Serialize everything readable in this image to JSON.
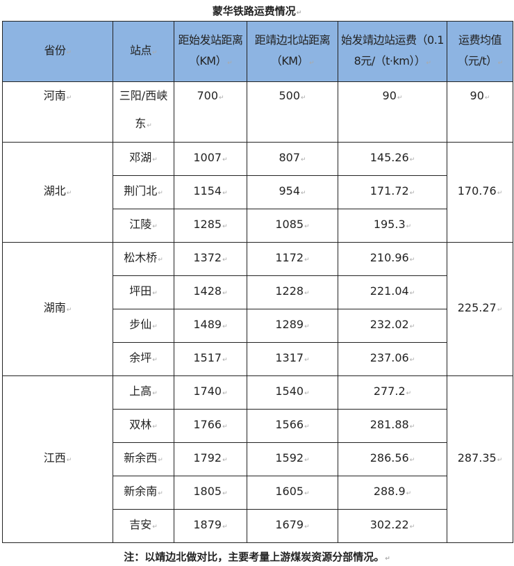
{
  "title": "蒙华铁路运费情况",
  "headers": [
    "省份",
    "站点",
    "距始发站距离（KM）",
    "距靖边北站距离（KM）",
    "始发靖边站运费（0.18元/（t·km））",
    "运费均值（元/t）"
  ],
  "groups": [
    {
      "province": "河南",
      "avg": "90",
      "rows": [
        [
          "三阳/西峡东",
          "700",
          "500",
          "90"
        ]
      ]
    },
    {
      "province": "湖北",
      "avg": "170.76",
      "rows": [
        [
          "邓湖",
          "1007",
          "807",
          "145.26"
        ],
        [
          "荆门北",
          "1154",
          "954",
          "171.72"
        ],
        [
          "江陵",
          "1285",
          "1085",
          "195.3"
        ]
      ]
    },
    {
      "province": "湖南",
      "avg": "225.27",
      "rows": [
        [
          "松木桥",
          "1372",
          "1172",
          "210.96"
        ],
        [
          "坪田",
          "1428",
          "1228",
          "221.04"
        ],
        [
          "步仙",
          "1489",
          "1289",
          "232.02"
        ],
        [
          "余坪",
          "1517",
          "1317",
          "237.06"
        ]
      ]
    },
    {
      "province": "江西",
      "avg": "287.35",
      "rows": [
        [
          "上高",
          "1740",
          "1540",
          "277.2"
        ],
        [
          "双林",
          "1766",
          "1566",
          "281.88"
        ],
        [
          "新余西",
          "1792",
          "1592",
          "286.56"
        ],
        [
          "新余南",
          "1805",
          "1605",
          "288.9"
        ],
        [
          "吉安",
          "1879",
          "1679",
          "302.22"
        ]
      ]
    }
  ],
  "note": "注：以靖边北做对比，主要考量上游煤炭资源分部情况。",
  "colors": {
    "header_bg": "#8db4e2"
  }
}
